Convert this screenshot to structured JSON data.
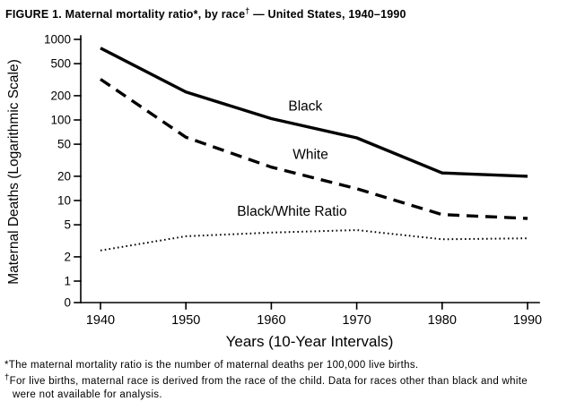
{
  "title": {
    "part1": "FIGURE 1. Maternal mortality ratio",
    "sup1": "*",
    "part2": ", by race",
    "sup2": "†",
    "part3": " — United States, 1940–1990"
  },
  "chart_data": {
    "type": "line",
    "title": "FIGURE 1. Maternal mortality ratio, by race — United States, 1940–1990",
    "xlabel": "Years (10-Year Intervals)",
    "ylabel": "Maternal Deaths (Logarithmic Scale)",
    "yscale": "logarithmic",
    "grid": false,
    "legend": "inline-labels",
    "line_color": "#000000",
    "x": [
      1940,
      1950,
      1960,
      1970,
      1980,
      1990
    ],
    "xticks": [
      1940,
      1950,
      1960,
      1970,
      1980,
      1990
    ],
    "yticks": [
      1000,
      500,
      200,
      100,
      50,
      20,
      10,
      5,
      2,
      1,
      0
    ],
    "series": [
      {
        "id": "black",
        "name": "Black",
        "line_style": "solid",
        "values": [
          780,
          222,
          104,
          60,
          22,
          20
        ],
        "label": "Black",
        "label_x": 1962,
        "label_y": 130
      },
      {
        "id": "white",
        "name": "White",
        "line_style": "dashed",
        "values": [
          320,
          61,
          26,
          14,
          6.7,
          6
        ],
        "label": "White",
        "label_x": 1962.5,
        "label_y": 33
      },
      {
        "id": "black-white-ratio",
        "name": "Black/White Ratio",
        "line_style": "dotted",
        "values": [
          2.4,
          3.6,
          4.0,
          4.3,
          3.3,
          3.4
        ],
        "label": "Black/White Ratio",
        "label_x": 1956,
        "label_y": 6.5
      }
    ]
  },
  "footnotes": [
    {
      "symbol": "*",
      "text": "The maternal mortality ratio is the number of maternal deaths per 100,000 live births."
    },
    {
      "symbol": "†",
      "text": "For live births, maternal race is derived from the race of the child. Data for races other than black and white were not available for analysis."
    }
  ]
}
